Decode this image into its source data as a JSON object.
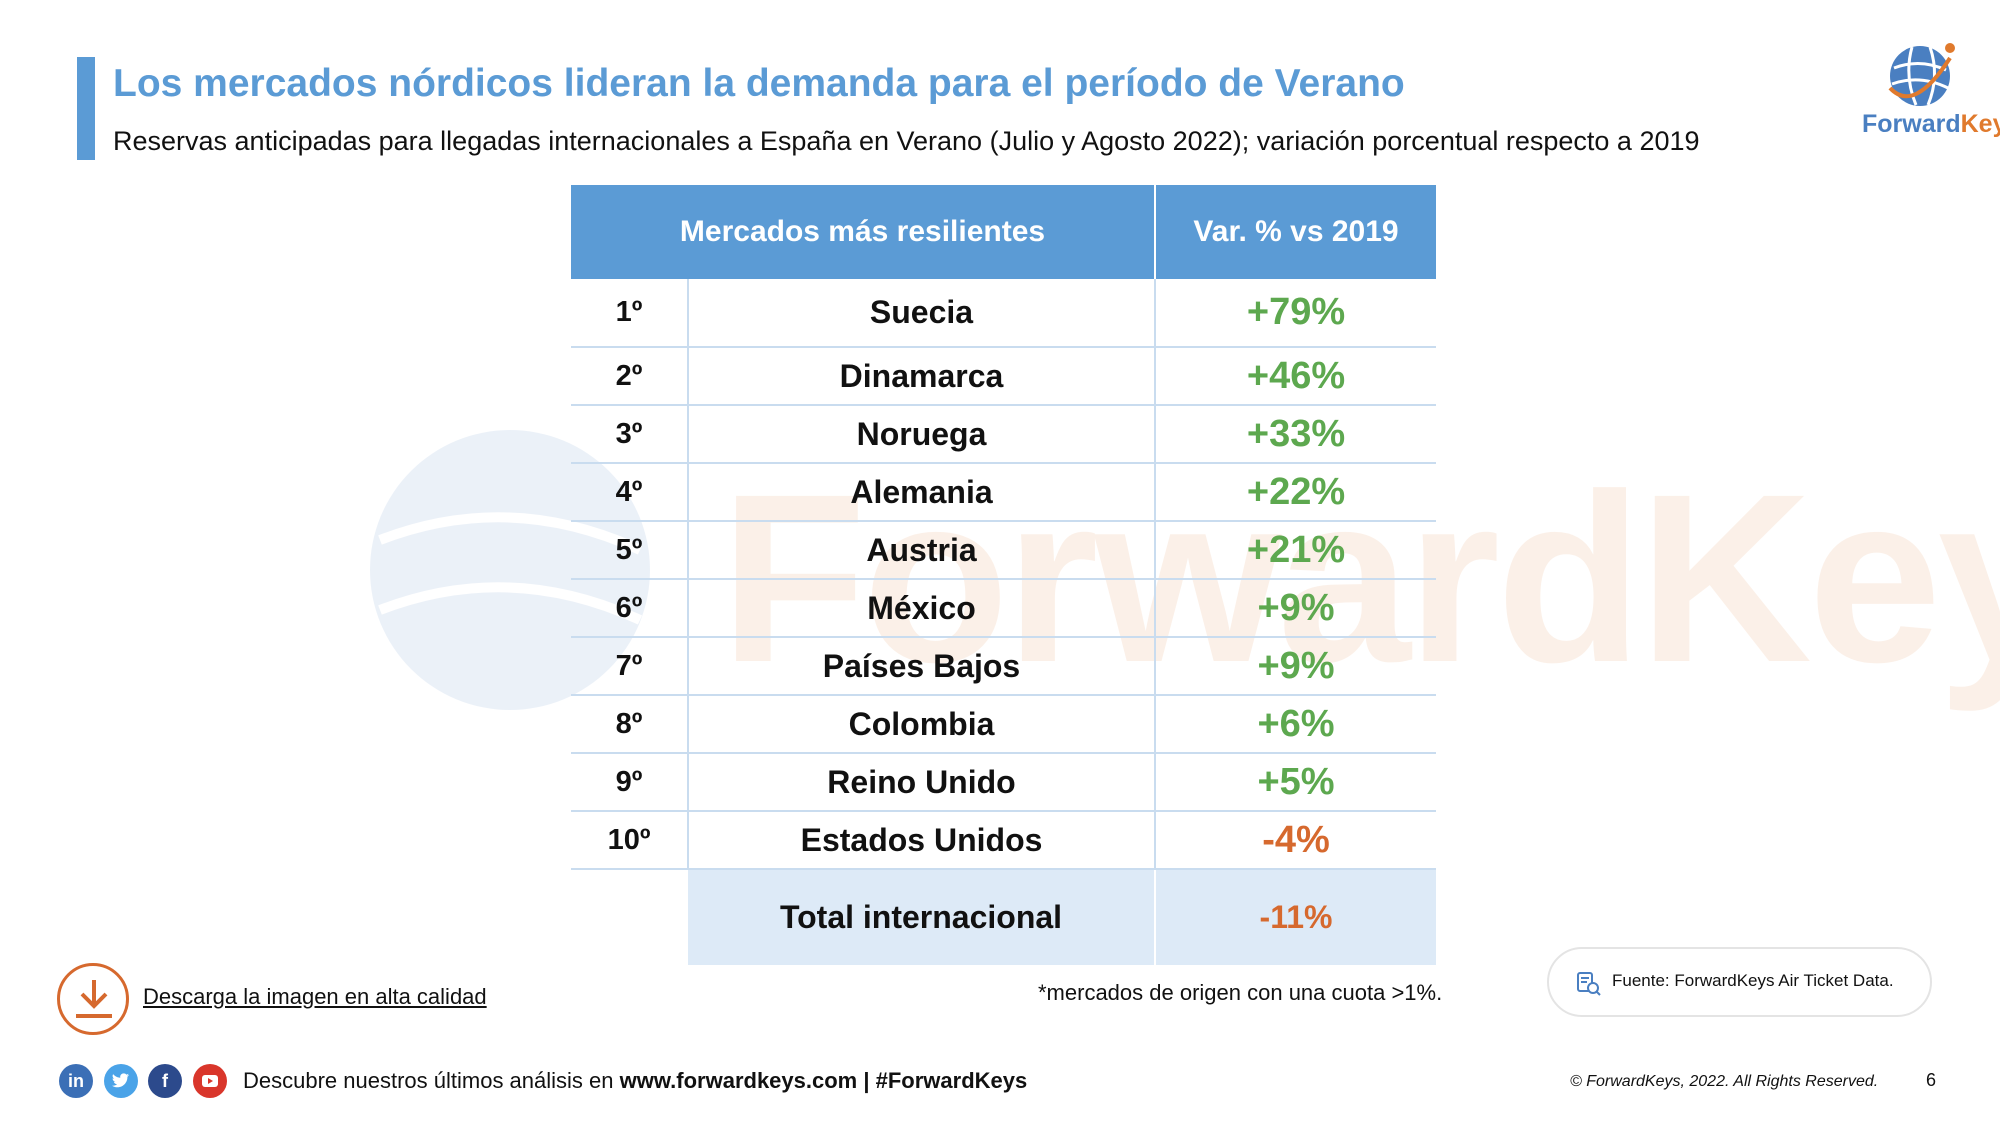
{
  "header": {
    "title": "Los mercados nórdicos lideran la demanda para el período de Verano",
    "subtitle": "Reservas anticipadas para llegadas internacionales a España en Verano (Julio y Agosto 2022); variación porcentual respecto a 2019"
  },
  "logo": {
    "text_part1": "Forward",
    "text_part2": "Keys",
    "colors": {
      "blue": "#4a7fc1",
      "orange": "#e07a2d"
    }
  },
  "watermark": {
    "text": "ForwardKeys"
  },
  "table": {
    "header_market": "Mercados más resilientes",
    "header_var": "Var. % vs 2019",
    "rows": [
      {
        "rank": "1º",
        "market": "Suecia",
        "var": "+79%",
        "sign": "pos"
      },
      {
        "rank": "2º",
        "market": "Dinamarca",
        "var": "+46%",
        "sign": "pos"
      },
      {
        "rank": "3º",
        "market": "Noruega",
        "var": "+33%",
        "sign": "pos"
      },
      {
        "rank": "4º",
        "market": "Alemania",
        "var": "+22%",
        "sign": "pos"
      },
      {
        "rank": "5º",
        "market": "Austria",
        "var": "+21%",
        "sign": "pos"
      },
      {
        "rank": "6º",
        "market": "México",
        "var": "+9%",
        "sign": "pos"
      },
      {
        "rank": "7º",
        "market": "Países Bajos",
        "var": "+9%",
        "sign": "pos"
      },
      {
        "rank": "8º",
        "market": "Colombia",
        "var": "+6%",
        "sign": "pos"
      },
      {
        "rank": "9º",
        "market": "Reino Unido",
        "var": "+5%",
        "sign": "pos"
      },
      {
        "rank": "10º",
        "market": "Estados Unidos",
        "var": "-4%",
        "sign": "neg"
      }
    ],
    "total_label": "Total internacional",
    "total_var": "-11%",
    "colors": {
      "header_bg": "#5b9bd5",
      "positive": "#5da84f",
      "negative": "#d6692e",
      "total_bg": "#ddeaf7"
    }
  },
  "footnote": "*mercados de origen con una cuota >1%.",
  "download": {
    "label": "Descarga la imagen en alta calidad",
    "icon": "download-icon"
  },
  "source": {
    "text": "Fuente: ForwardKeys Air Ticket Data.",
    "icon": "document-search-icon"
  },
  "footer": {
    "social_icons": [
      "linkedin-icon",
      "twitter-icon",
      "facebook-icon",
      "youtube-icon"
    ],
    "discover_prefix": "Descubre nuestros últimos análisis en",
    "discover_link": "www.forwardkeys.com | #ForwardKeys",
    "copyright": "© ForwardKeys, 2022. All Rights Reserved.",
    "page_number": "6"
  }
}
